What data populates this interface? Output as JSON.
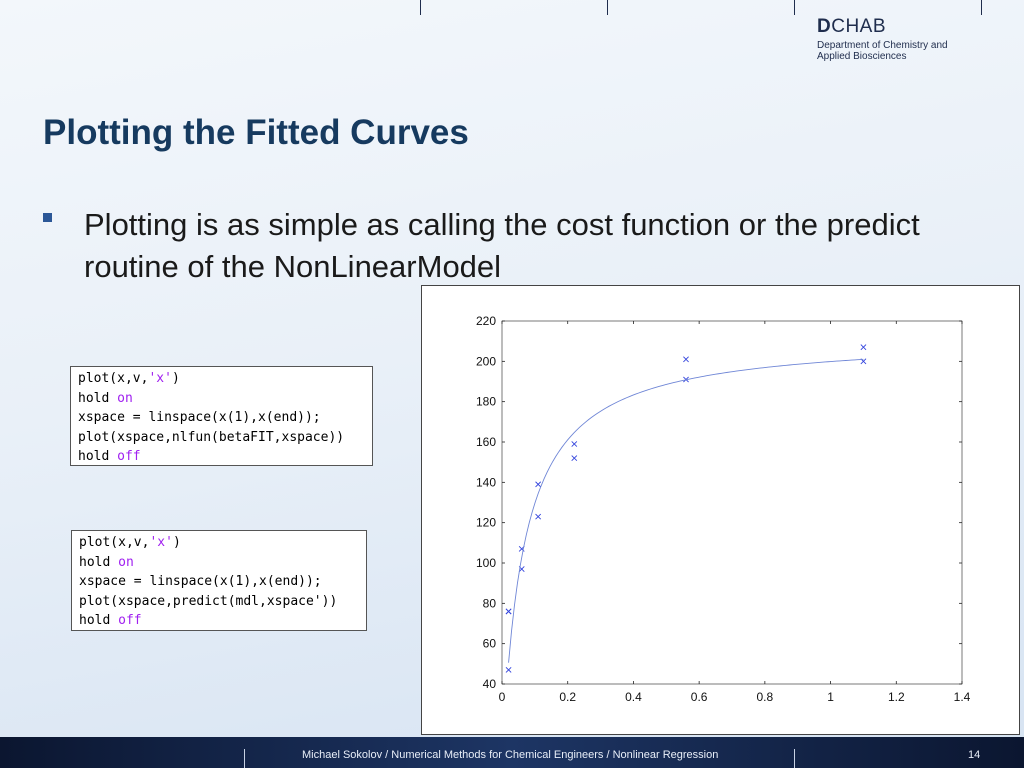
{
  "logo": {
    "brand_bold": "D",
    "brand_rest": "CHAB",
    "line1": "Department of Chemistry and",
    "line2": "Applied Biosciences"
  },
  "slide": {
    "title": "Plotting the Fitted Curves",
    "bullet": "Plotting is as simple as calling the cost function or the predict routine of the NonLinearModel"
  },
  "code_blocks": [
    {
      "lines": [
        "plot(x,v,'x')",
        "hold on",
        "xspace = linspace(x(1),x(end));",
        "plot(xspace,nlfun(betaFIT,xspace))",
        "hold off"
      ]
    },
    {
      "lines": [
        "plot(x,v,'x')",
        "hold on",
        "xspace = linspace(x(1),x(end));",
        "plot(xspace,predict(mdl,xspace'))",
        "hold off"
      ]
    }
  ],
  "chart_data": {
    "type": "scatter",
    "xlim": [
      0,
      1.4
    ],
    "ylim": [
      40,
      220
    ],
    "x_ticks": [
      0,
      0.2,
      0.4,
      0.6,
      0.8,
      1,
      1.2,
      1.4
    ],
    "x_tick_labels": [
      "0",
      "0.2",
      "0.4",
      "0.6",
      "0.8",
      "1",
      "1.2",
      "1.4"
    ],
    "y_ticks": [
      40,
      60,
      80,
      100,
      120,
      140,
      160,
      180,
      200,
      220
    ],
    "y_tick_labels": [
      "40",
      "60",
      "80",
      "100",
      "120",
      "140",
      "160",
      "180",
      "200",
      "220"
    ],
    "grid": false,
    "series": [
      {
        "kind": "markers",
        "marker": "x",
        "color": "#3344dd",
        "x": [
          0.02,
          0.02,
          0.02,
          0.06,
          0.06,
          0.11,
          0.11,
          0.22,
          0.22,
          0.56,
          0.56,
          1.1,
          1.1
        ],
        "y": [
          47,
          76,
          76,
          97,
          107,
          123,
          139,
          152,
          159,
          191,
          201,
          200,
          207
        ]
      },
      {
        "kind": "line",
        "color": "#6f86d6",
        "model": "michaelis-menten",
        "Vmax": 212.7,
        "K": 0.0641,
        "x_from": 0.02,
        "x_to": 1.1
      }
    ]
  },
  "footer": {
    "caption": "Michael Sokolov / Numerical Methods for Chemical Engineers / Nonlinear Regression",
    "page": "14"
  }
}
